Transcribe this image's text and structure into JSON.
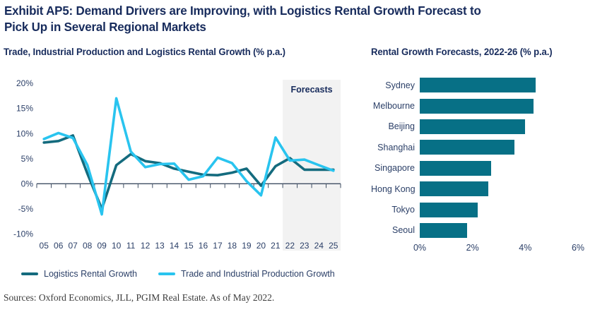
{
  "page": {
    "title_line1": "Exhibit AP5: Demand Drivers are Improving, with Logistics Rental Growth Forecast to",
    "title_line2": "Pick Up in Several Regional Markets",
    "source": "Sources: Oxford Economics, JLL, PGIM Real Estate. As of May 2022."
  },
  "colors": {
    "navy": "#172b5c",
    "axis_label": "#2c4068",
    "teal_line": "#146b7e",
    "cyan_line": "#29c4ef",
    "bar_teal": "#077086",
    "band_gray": "#f2f2f2",
    "axis_line": "#3f4e63"
  },
  "chart_data": [
    {
      "type": "line",
      "title": "Trade, Industrial Production and Logistics Rental Growth (% p.a.)",
      "x": [
        "05",
        "06",
        "07",
        "08",
        "09",
        "10",
        "11",
        "12",
        "13",
        "14",
        "15",
        "16",
        "17",
        "18",
        "19",
        "20",
        "21",
        "22",
        "23",
        "24",
        "25"
      ],
      "series": [
        {
          "name": "Logistics Rental Growth",
          "color_key": "teal_line",
          "values": [
            8.2,
            8.5,
            9.6,
            2.0,
            -5.0,
            3.7,
            5.9,
            4.5,
            4.1,
            3.0,
            2.4,
            1.8,
            1.7,
            2.2,
            3.0,
            -0.4,
            3.5,
            5.1,
            2.8,
            2.8,
            2.8
          ]
        },
        {
          "name": "Trade and Industrial Production Growth",
          "color_key": "cyan_line",
          "values": [
            8.9,
            10.1,
            9.1,
            3.7,
            -6.1,
            17.0,
            6.4,
            3.3,
            3.9,
            4.0,
            0.8,
            1.5,
            5.2,
            4.1,
            0.5,
            -2.3,
            9.2,
            4.6,
            4.8,
            3.7,
            2.6
          ]
        }
      ],
      "y_tick_labels": [
        "20%",
        "15%",
        "10%",
        "5%",
        "0%",
        "-5%",
        "-10%"
      ],
      "y_tick_values": [
        20,
        15,
        10,
        5,
        0,
        -5,
        -10
      ],
      "ylim": [
        -10,
        20
      ],
      "grid": false,
      "legend_position": "bottom",
      "forecast_band": {
        "label": "Forecasts",
        "start_year": "22",
        "end_year": "25"
      }
    },
    {
      "type": "bar",
      "orientation": "horizontal",
      "title": "Rental Growth Forecasts, 2022-26 (% p.a.)",
      "categories": [
        "Sydney",
        "Melbourne",
        "Beijing",
        "Shanghai",
        "Singapore",
        "Hong Kong",
        "Tokyo",
        "Seoul"
      ],
      "values": [
        4.4,
        4.3,
        4.0,
        3.6,
        2.7,
        2.6,
        2.2,
        1.8
      ],
      "x_tick_labels": [
        "0%",
        "2%",
        "4%",
        "6%"
      ],
      "x_tick_values": [
        0,
        2,
        4,
        6
      ],
      "xlim": [
        0,
        6
      ],
      "grid": false
    }
  ]
}
